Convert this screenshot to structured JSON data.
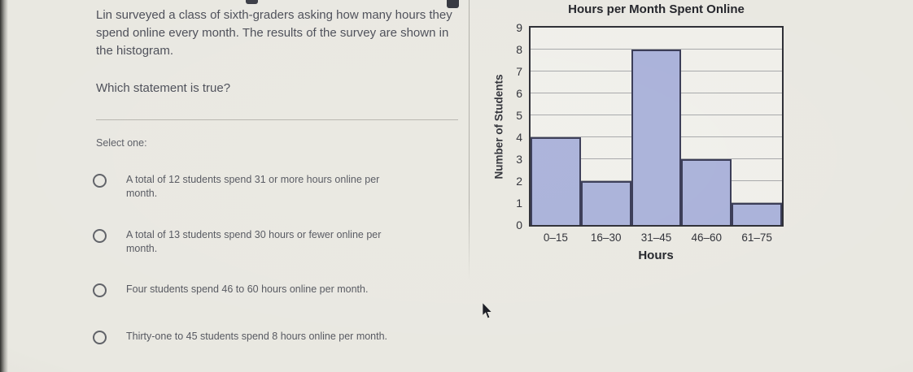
{
  "question": {
    "prompt": "Lin surveyed a class of sixth-graders asking how many hours they spend online every month. The results of the survey are shown in the histogram.",
    "subprompt": "Which statement is true?",
    "select_label": "Select one:",
    "options": [
      {
        "label": "A total of 12 students spend 31 or more hours online per month.",
        "selected": false
      },
      {
        "label": "A total of 13 students spend 30 hours or fewer online per month.",
        "selected": false
      },
      {
        "label": "Four students spend 46 to 60 hours online per month.",
        "selected": false
      },
      {
        "label": "Thirty-one to 45 students spend 8 hours online per month.",
        "selected": false
      }
    ]
  },
  "chart_data": {
    "type": "bar",
    "title": "Hours per Month Spent Online",
    "categories": [
      "0–15",
      "16–30",
      "31–45",
      "46–60",
      "61–75"
    ],
    "values": [
      4,
      2,
      8,
      3,
      1
    ],
    "xlabel": "Hours",
    "ylabel": "Number of Students",
    "ylim": [
      0,
      9
    ],
    "yticks": [
      0,
      1,
      2,
      3,
      4,
      5,
      6,
      7,
      8,
      9
    ],
    "grid": true,
    "legend": false,
    "bar_fill": "#a9b1d9",
    "bar_border": "#363853"
  }
}
